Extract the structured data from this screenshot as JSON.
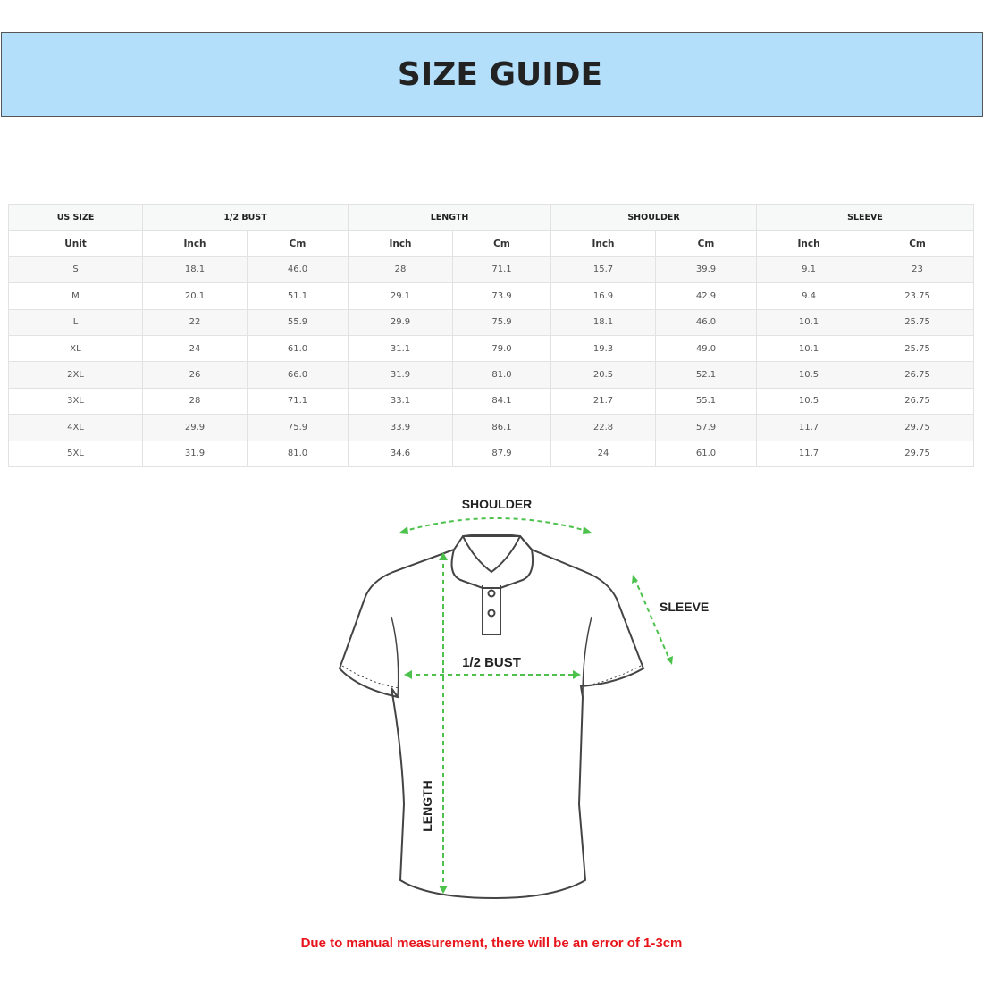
{
  "title": "SIZE GUIDE",
  "table": {
    "groups": [
      "US SIZE",
      "1/2 BUST",
      "LENGTH",
      "SHOULDER",
      "SLEEVE"
    ],
    "units": [
      "Unit",
      "Inch",
      "Cm",
      "Inch",
      "Cm",
      "Inch",
      "Cm",
      "Inch",
      "Cm"
    ],
    "rows": [
      [
        "S",
        "18.1",
        "46.0",
        "28",
        "71.1",
        "15.7",
        "39.9",
        "9.1",
        "23"
      ],
      [
        "M",
        "20.1",
        "51.1",
        "29.1",
        "73.9",
        "16.9",
        "42.9",
        "9.4",
        "23.75"
      ],
      [
        "L",
        "22",
        "55.9",
        "29.9",
        "75.9",
        "18.1",
        "46.0",
        "10.1",
        "25.75"
      ],
      [
        "XL",
        "24",
        "61.0",
        "31.1",
        "79.0",
        "19.3",
        "49.0",
        "10.1",
        "25.75"
      ],
      [
        "2XL",
        "26",
        "66.0",
        "31.9",
        "81.0",
        "20.5",
        "52.1",
        "10.5",
        "26.75"
      ],
      [
        "3XL",
        "28",
        "71.1",
        "33.1",
        "84.1",
        "21.7",
        "55.1",
        "10.5",
        "26.75"
      ],
      [
        "4XL",
        "29.9",
        "75.9",
        "33.9",
        "86.1",
        "22.8",
        "57.9",
        "11.7",
        "29.75"
      ],
      [
        "5XL",
        "31.9",
        "81.0",
        "34.6",
        "87.9",
        "24",
        "61.0",
        "11.7",
        "29.75"
      ]
    ]
  },
  "diagram": {
    "shoulder": "SHOULDER",
    "sleeve": "SLEEVE",
    "bust": "1/2 BUST",
    "length": "LENGTH",
    "arrow_color": "#4cc24c"
  },
  "note": "Due to manual measurement, there will be an error of 1-3cm"
}
